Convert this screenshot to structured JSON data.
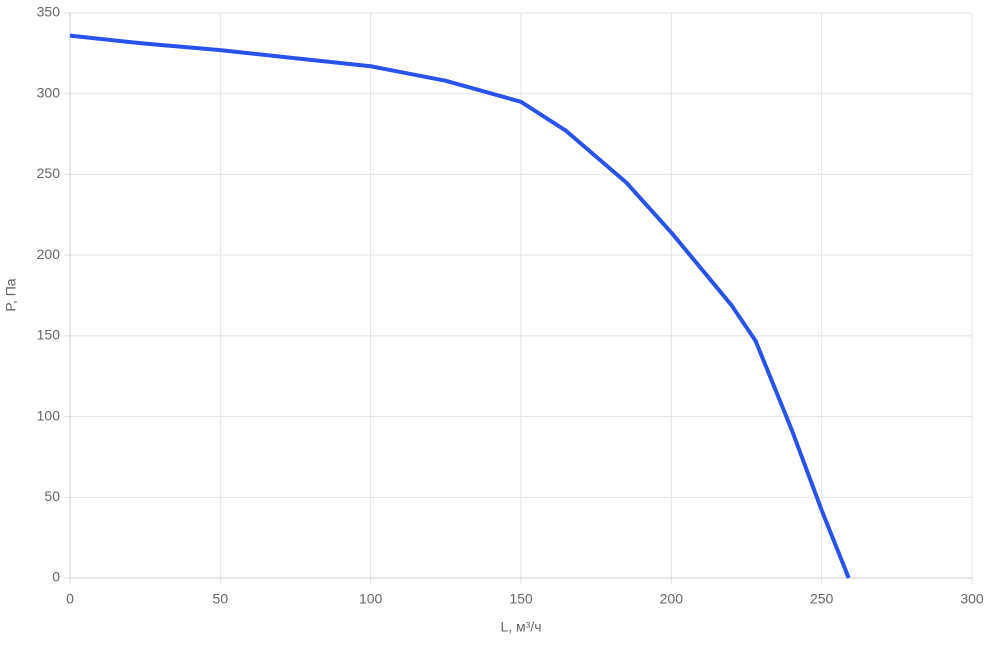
{
  "chart_data": {
    "type": "line",
    "x_label": "L, м³/ч",
    "y_label": "P, Па",
    "series": [
      {
        "name": "P",
        "color": "#2753e8",
        "x": [
          0,
          25,
          50,
          75,
          100,
          125,
          150,
          165,
          185,
          200,
          220,
          228,
          240,
          250,
          259
        ],
        "values": [
          336,
          331,
          327,
          322,
          317,
          308,
          295,
          277,
          245,
          214,
          169,
          147,
          92,
          42,
          0
        ]
      }
    ],
    "xlim": [
      0,
      300
    ],
    "xticks": [
      0,
      50,
      100,
      150,
      200,
      250,
      300
    ],
    "ylim": [
      0,
      350
    ],
    "yticks": [
      0,
      50,
      100,
      150,
      200,
      250,
      300,
      350
    ],
    "grid": true
  }
}
